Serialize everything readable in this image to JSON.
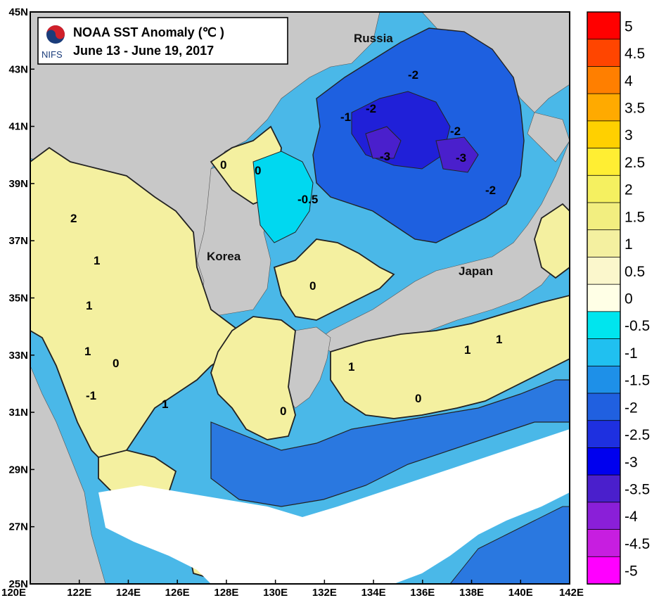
{
  "title": {
    "line1": "NOAA SST Anomaly (℃ )",
    "line2": "June 13 - June 19, 2017",
    "logo_text": "NIFS"
  },
  "axes": {
    "x_ticks": [
      "120E",
      "122E",
      "124E",
      "126E",
      "128E",
      "130E",
      "132E",
      "134E",
      "136E",
      "138E",
      "140E",
      "142E"
    ],
    "y_ticks": [
      "45N",
      "43N",
      "41N",
      "39N",
      "37N",
      "35N",
      "33N",
      "31N",
      "29N",
      "27N",
      "25N"
    ]
  },
  "places": {
    "russia": "Russia",
    "korea": "Korea",
    "japan": "Japan"
  },
  "contour_labels": [
    "-2",
    "-2",
    "-2",
    "-3",
    "-3",
    "-2",
    "-1",
    "-0.5",
    "0",
    "0",
    "0",
    "1",
    "1",
    "1",
    "1",
    "2",
    "0",
    "-1",
    "1",
    "1",
    "0",
    "0",
    "1"
  ],
  "legend": {
    "labels": [
      "5",
      "4.5",
      "4",
      "3.5",
      "3",
      "2.5",
      "2",
      "1.5",
      "1",
      "0.5",
      "0",
      "-0.5",
      "-1",
      "-1.5",
      "-2",
      "-2.5",
      "-3",
      "-3.5",
      "-4",
      "-4.5",
      "-5"
    ],
    "colors": [
      "#ff0000",
      "#ff4500",
      "#ff7f00",
      "#ffaa00",
      "#ffd000",
      "#ffee33",
      "#f5f060",
      "#f2ee80",
      "#f4f0a0",
      "#fbf7cc",
      "#ffffe6",
      "#00e5ee",
      "#20c0f0",
      "#1e90e8",
      "#2060e0",
      "#1e30e0",
      "#0000ee",
      "#4a1fcc",
      "#8a1fd8",
      "#c71ee0",
      "#ff00ff"
    ]
  },
  "colors": {
    "land": "#c8c8c8",
    "no_data": "#ffffff",
    "warm_anomaly": "#f4f0a0",
    "cold_anomaly": "#1e60e0"
  }
}
